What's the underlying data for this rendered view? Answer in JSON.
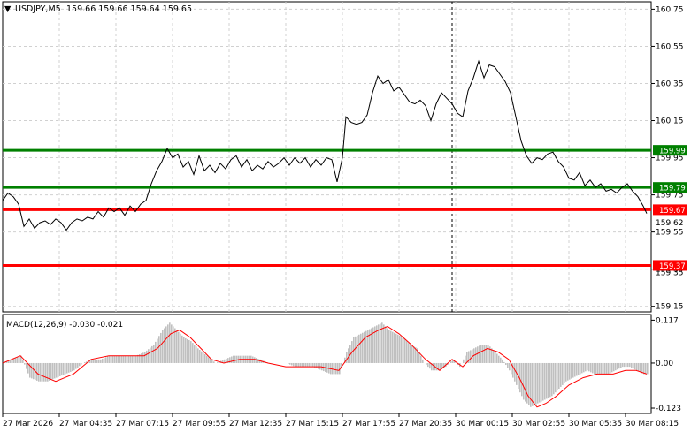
{
  "header": {
    "arrow": "▼",
    "symbol": "USDJPY,M5",
    "ohlc": "159.66 159.66 159.64 159.65"
  },
  "price_axis": {
    "ticks": [
      "160.75",
      "160.55",
      "160.35",
      "160.15",
      "159.95",
      "159.75",
      "159.55",
      "159.35",
      "159.15"
    ],
    "partial_ticks": [
      "159.62",
      "159.35"
    ]
  },
  "levels": [
    {
      "name": "resistance-upper",
      "price": 159.99,
      "label": "159.99",
      "color": "#008000",
      "label_bg": "#008000"
    },
    {
      "name": "resistance-lower",
      "price": 159.79,
      "label": "159.79",
      "color": "#008000",
      "label_bg": "#008000"
    },
    {
      "name": "support-upper",
      "price": 159.67,
      "label": "159.67",
      "color": "#ff0000",
      "label_bg": "#ff0000"
    },
    {
      "name": "support-lower",
      "price": 159.37,
      "label": "159.37",
      "color": "#ff0000",
      "label_bg": "#ff0000"
    }
  ],
  "macd": {
    "title": "MACD(12,26,9) -0.030 -0.021",
    "ticks": [
      "0.117",
      "0.00",
      "-0.123"
    ],
    "histogram_color": "#c0c0c0",
    "signal_color": "#ff0000"
  },
  "time_axis": {
    "labels": [
      "27 Mar 2026",
      "27 Mar 04:35",
      "27 Mar 07:15",
      "27 Mar 09:55",
      "27 Mar 12:35",
      "27 Mar 15:15",
      "27 Mar 17:55",
      "27 Mar 20:35",
      "30 Mar 00:15",
      "30 Mar 02:55",
      "30 Mar 05:35",
      "30 Mar 08:15"
    ]
  },
  "chart_data": {
    "type": "line",
    "symbol": "USDJPY",
    "timeframe": "M5",
    "ylim": [
      159.12,
      160.79
    ],
    "price_series": [
      [
        0,
        159.72
      ],
      [
        6,
        159.76
      ],
      [
        12,
        159.74
      ],
      [
        18,
        159.7
      ],
      [
        24,
        159.58
      ],
      [
        30,
        159.62
      ],
      [
        36,
        159.57
      ],
      [
        42,
        159.6
      ],
      [
        48,
        159.61
      ],
      [
        54,
        159.59
      ],
      [
        60,
        159.62
      ],
      [
        66,
        159.6
      ],
      [
        72,
        159.56
      ],
      [
        78,
        159.6
      ],
      [
        84,
        159.62
      ],
      [
        90,
        159.61
      ],
      [
        96,
        159.63
      ],
      [
        102,
        159.62
      ],
      [
        108,
        159.66
      ],
      [
        114,
        159.63
      ],
      [
        120,
        159.68
      ],
      [
        126,
        159.66
      ],
      [
        132,
        159.68
      ],
      [
        138,
        159.64
      ],
      [
        144,
        159.69
      ],
      [
        150,
        159.66
      ],
      [
        156,
        159.7
      ],
      [
        162,
        159.72
      ],
      [
        168,
        159.81
      ],
      [
        174,
        159.88
      ],
      [
        180,
        159.93
      ],
      [
        186,
        160.0
      ],
      [
        192,
        159.95
      ],
      [
        198,
        159.97
      ],
      [
        204,
        159.9
      ],
      [
        210,
        159.93
      ],
      [
        216,
        159.86
      ],
      [
        222,
        159.96
      ],
      [
        228,
        159.88
      ],
      [
        234,
        159.91
      ],
      [
        240,
        159.87
      ],
      [
        246,
        159.92
      ],
      [
        252,
        159.89
      ],
      [
        258,
        159.94
      ],
      [
        264,
        159.96
      ],
      [
        270,
        159.9
      ],
      [
        276,
        159.94
      ],
      [
        282,
        159.88
      ],
      [
        288,
        159.91
      ],
      [
        294,
        159.89
      ],
      [
        300,
        159.93
      ],
      [
        306,
        159.9
      ],
      [
        312,
        159.92
      ],
      [
        318,
        159.95
      ],
      [
        324,
        159.91
      ],
      [
        330,
        159.95
      ],
      [
        336,
        159.92
      ],
      [
        342,
        159.95
      ],
      [
        348,
        159.9
      ],
      [
        354,
        159.94
      ],
      [
        360,
        159.91
      ],
      [
        366,
        159.95
      ],
      [
        372,
        159.94
      ],
      [
        378,
        159.82
      ],
      [
        384,
        159.95
      ],
      [
        388,
        160.17
      ],
      [
        394,
        160.14
      ],
      [
        400,
        160.13
      ],
      [
        406,
        160.14
      ],
      [
        412,
        160.18
      ],
      [
        418,
        160.3
      ],
      [
        424,
        160.39
      ],
      [
        430,
        160.35
      ],
      [
        436,
        160.37
      ],
      [
        442,
        160.31
      ],
      [
        448,
        160.33
      ],
      [
        454,
        160.29
      ],
      [
        460,
        160.25
      ],
      [
        466,
        160.24
      ],
      [
        472,
        160.26
      ],
      [
        478,
        160.23
      ],
      [
        484,
        160.15
      ],
      [
        490,
        160.24
      ],
      [
        496,
        160.3
      ],
      [
        502,
        160.27
      ],
      [
        508,
        160.24
      ],
      [
        514,
        160.19
      ],
      [
        520,
        160.17
      ],
      [
        526,
        160.31
      ],
      [
        532,
        160.38
      ],
      [
        538,
        160.47
      ],
      [
        544,
        160.38
      ],
      [
        550,
        160.45
      ],
      [
        556,
        160.44
      ],
      [
        562,
        160.4
      ],
      [
        568,
        160.36
      ],
      [
        574,
        160.3
      ],
      [
        580,
        160.17
      ],
      [
        586,
        160.04
      ],
      [
        592,
        159.96
      ],
      [
        598,
        159.92
      ],
      [
        604,
        159.95
      ],
      [
        610,
        159.94
      ],
      [
        616,
        159.97
      ],
      [
        622,
        159.98
      ],
      [
        628,
        159.93
      ],
      [
        634,
        159.9
      ],
      [
        640,
        159.84
      ],
      [
        646,
        159.83
      ],
      [
        652,
        159.87
      ],
      [
        658,
        159.8
      ],
      [
        664,
        159.83
      ],
      [
        670,
        159.79
      ],
      [
        676,
        159.81
      ],
      [
        682,
        159.77
      ],
      [
        688,
        159.78
      ],
      [
        694,
        159.76
      ],
      [
        700,
        159.79
      ],
      [
        706,
        159.81
      ],
      [
        712,
        159.77
      ],
      [
        718,
        159.74
      ],
      [
        724,
        159.69
      ],
      [
        728,
        159.65
      ]
    ],
    "macd_histogram": [
      [
        0,
        0.0
      ],
      [
        10,
        0.01
      ],
      [
        20,
        0.02
      ],
      [
        30,
        -0.04
      ],
      [
        40,
        -0.05
      ],
      [
        50,
        -0.05
      ],
      [
        60,
        -0.04
      ],
      [
        70,
        -0.03
      ],
      [
        80,
        -0.02
      ],
      [
        90,
        0.0
      ],
      [
        100,
        0.01
      ],
      [
        110,
        0.01
      ],
      [
        120,
        0.02
      ],
      [
        130,
        0.02
      ],
      [
        140,
        0.02
      ],
      [
        150,
        0.02
      ],
      [
        160,
        0.03
      ],
      [
        170,
        0.05
      ],
      [
        180,
        0.09
      ],
      [
        188,
        0.11
      ],
      [
        196,
        0.09
      ],
      [
        204,
        0.07
      ],
      [
        212,
        0.06
      ],
      [
        220,
        0.04
      ],
      [
        230,
        0.02
      ],
      [
        240,
        0.0
      ],
      [
        250,
        0.01
      ],
      [
        260,
        0.02
      ],
      [
        270,
        0.02
      ],
      [
        280,
        0.02
      ],
      [
        290,
        0.01
      ],
      [
        300,
        0.0
      ],
      [
        310,
        0.0
      ],
      [
        320,
        0.0
      ],
      [
        330,
        -0.01
      ],
      [
        340,
        -0.01
      ],
      [
        350,
        -0.01
      ],
      [
        360,
        -0.02
      ],
      [
        370,
        -0.03
      ],
      [
        380,
        -0.03
      ],
      [
        388,
        0.03
      ],
      [
        396,
        0.07
      ],
      [
        404,
        0.08
      ],
      [
        412,
        0.09
      ],
      [
        420,
        0.1
      ],
      [
        428,
        0.11
      ],
      [
        436,
        0.09
      ],
      [
        444,
        0.08
      ],
      [
        452,
        0.07
      ],
      [
        460,
        0.05
      ],
      [
        468,
        0.04
      ],
      [
        476,
        0.0
      ],
      [
        484,
        -0.02
      ],
      [
        492,
        -0.02
      ],
      [
        500,
        -0.01
      ],
      [
        508,
        0.01
      ],
      [
        516,
        -0.01
      ],
      [
        524,
        0.03
      ],
      [
        532,
        0.04
      ],
      [
        540,
        0.05
      ],
      [
        548,
        0.05
      ],
      [
        556,
        0.03
      ],
      [
        564,
        0.01
      ],
      [
        572,
        -0.02
      ],
      [
        580,
        -0.06
      ],
      [
        588,
        -0.1
      ],
      [
        596,
        -0.12
      ],
      [
        604,
        -0.11
      ],
      [
        612,
        -0.1
      ],
      [
        620,
        -0.09
      ],
      [
        628,
        -0.07
      ],
      [
        636,
        -0.05
      ],
      [
        644,
        -0.04
      ],
      [
        652,
        -0.03
      ],
      [
        660,
        -0.02
      ],
      [
        668,
        -0.03
      ],
      [
        676,
        -0.03
      ],
      [
        684,
        -0.03
      ],
      [
        692,
        -0.02
      ],
      [
        700,
        -0.01
      ],
      [
        708,
        -0.01
      ],
      [
        716,
        -0.02
      ],
      [
        724,
        -0.03
      ]
    ],
    "macd_signal": [
      [
        0,
        0.0
      ],
      [
        20,
        0.02
      ],
      [
        40,
        -0.03
      ],
      [
        60,
        -0.05
      ],
      [
        80,
        -0.03
      ],
      [
        100,
        0.01
      ],
      [
        120,
        0.02
      ],
      [
        140,
        0.02
      ],
      [
        160,
        0.02
      ],
      [
        175,
        0.04
      ],
      [
        190,
        0.08
      ],
      [
        200,
        0.09
      ],
      [
        212,
        0.07
      ],
      [
        224,
        0.04
      ],
      [
        236,
        0.01
      ],
      [
        250,
        0.0
      ],
      [
        268,
        0.01
      ],
      [
        285,
        0.01
      ],
      [
        300,
        0.0
      ],
      [
        320,
        -0.01
      ],
      [
        340,
        -0.01
      ],
      [
        360,
        -0.01
      ],
      [
        380,
        -0.02
      ],
      [
        395,
        0.03
      ],
      [
        410,
        0.07
      ],
      [
        425,
        0.09
      ],
      [
        435,
        0.1
      ],
      [
        448,
        0.08
      ],
      [
        462,
        0.05
      ],
      [
        478,
        0.01
      ],
      [
        494,
        -0.02
      ],
      [
        508,
        0.01
      ],
      [
        520,
        -0.01
      ],
      [
        532,
        0.02
      ],
      [
        548,
        0.04
      ],
      [
        560,
        0.03
      ],
      [
        572,
        0.01
      ],
      [
        584,
        -0.04
      ],
      [
        594,
        -0.09
      ],
      [
        604,
        -0.12
      ],
      [
        614,
        -0.11
      ],
      [
        626,
        -0.09
      ],
      [
        640,
        -0.06
      ],
      [
        656,
        -0.04
      ],
      [
        672,
        -0.03
      ],
      [
        690,
        -0.03
      ],
      [
        704,
        -0.02
      ],
      [
        716,
        -0.02
      ],
      [
        728,
        -0.03
      ]
    ]
  }
}
